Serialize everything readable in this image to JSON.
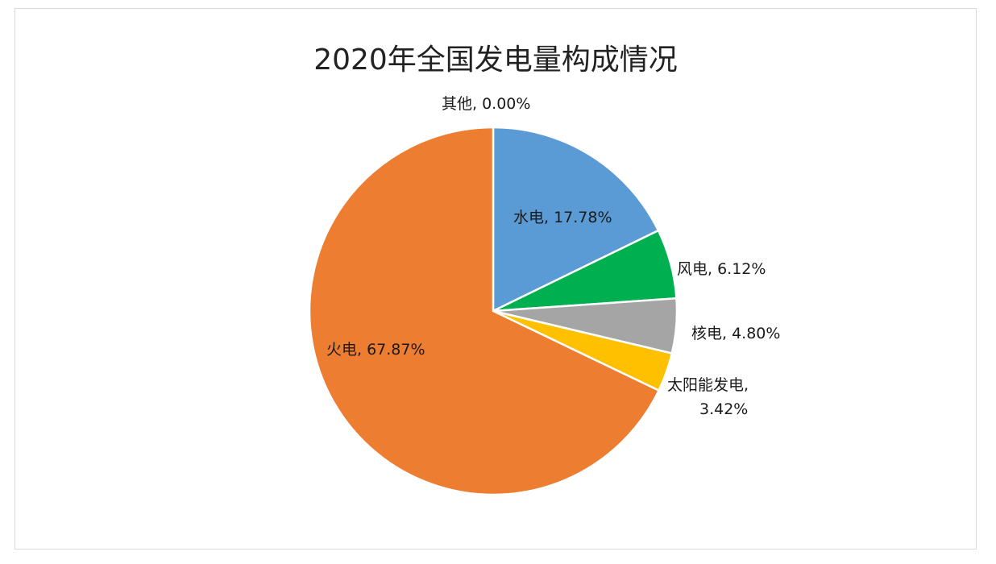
{
  "chart_data": {
    "type": "pie",
    "title": "2020年全国发电量构成情况",
    "slices": [
      {
        "name": "水电",
        "value": 17.78,
        "label": "水电, 17.78%",
        "color": "#5b9bd5"
      },
      {
        "name": "风电",
        "value": 6.12,
        "label": "风电, 6.12%",
        "color": "#00b050"
      },
      {
        "name": "核电",
        "value": 4.8,
        "label": "核电, 4.80%",
        "color": "#a5a5a5"
      },
      {
        "name": "太阳能发电",
        "value": 3.42,
        "label_line1": "太阳能发电,",
        "label_line2": "3.42%",
        "color": "#ffc000"
      },
      {
        "name": "火电",
        "value": 67.87,
        "label": "火电, 67.87%",
        "color": "#ed7d31"
      },
      {
        "name": "其他",
        "value": 0.0,
        "label": "其他, 0.00%",
        "color": "#4472c4"
      }
    ],
    "start_angle_deg": 0,
    "direction": "clockwise",
    "legend": "none"
  }
}
